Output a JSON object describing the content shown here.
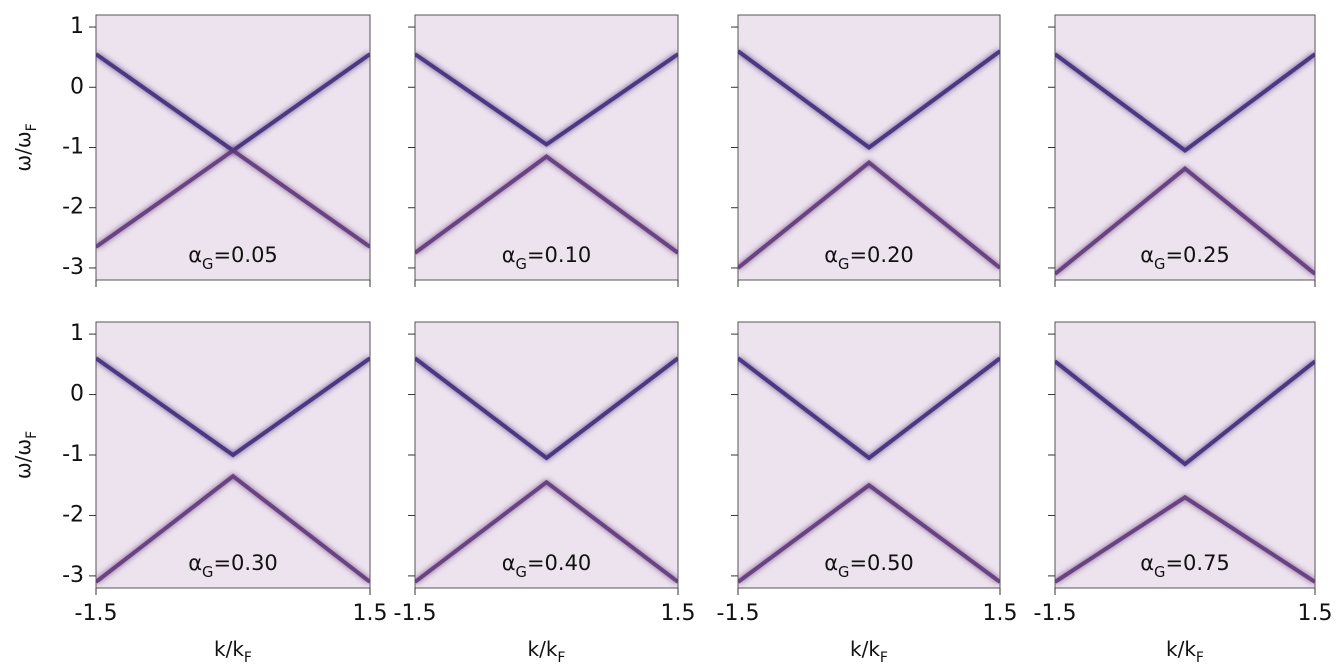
{
  "chart_data": [
    {
      "type": "line",
      "ylabel": {
        "text": "ω/ω",
        "sub": "F"
      },
      "annotation": {
        "symbol": "α",
        "sub": "G",
        "text": "=0.05"
      },
      "x": [
        -1.5,
        0,
        1.5
      ],
      "series": [
        {
          "color": "#3d2878",
          "values": [
            0.55,
            -1.05,
            0.55
          ]
        },
        {
          "color": "#5e3278",
          "values": [
            -2.65,
            -1.05,
            -2.65
          ]
        }
      ],
      "xlim": [
        -1.5,
        1.5
      ],
      "ylim": [
        -3.2,
        1.2
      ],
      "xticks": [
        -1.5,
        1.5
      ],
      "yticks": [
        1,
        0,
        -1,
        -2,
        -3
      ]
    },
    {
      "type": "line",
      "annotation": {
        "symbol": "α",
        "sub": "G",
        "text": "=0.10"
      },
      "x": [
        -1.5,
        0,
        1.5
      ],
      "series": [
        {
          "color": "#3d2878",
          "values": [
            0.55,
            -0.95,
            0.55
          ]
        },
        {
          "color": "#5e3278",
          "values": [
            -2.75,
            -1.15,
            -2.75
          ]
        }
      ],
      "xlim": [
        -1.5,
        1.5
      ],
      "ylim": [
        -3.2,
        1.2
      ],
      "xticks": [
        -1.5,
        1.5
      ],
      "yticks": [
        1,
        0,
        -1,
        -2,
        -3
      ]
    },
    {
      "type": "line",
      "annotation": {
        "symbol": "α",
        "sub": "G",
        "text": "=0.20"
      },
      "x": [
        -1.5,
        0,
        1.5
      ],
      "series": [
        {
          "color": "#3d2878",
          "values": [
            0.6,
            -1.0,
            0.6
          ]
        },
        {
          "color": "#5e3278",
          "values": [
            -3.0,
            -1.25,
            -3.0
          ]
        }
      ],
      "xlim": [
        -1.5,
        1.5
      ],
      "ylim": [
        -3.2,
        1.2
      ],
      "xticks": [
        -1.5,
        1.5
      ],
      "yticks": [
        1,
        0,
        -1,
        -2,
        -3
      ]
    },
    {
      "type": "line",
      "annotation": {
        "symbol": "α",
        "sub": "G",
        "text": "=0.25"
      },
      "x": [
        -1.5,
        0,
        1.5
      ],
      "series": [
        {
          "color": "#3d2878",
          "values": [
            0.55,
            -1.05,
            0.55
          ]
        },
        {
          "color": "#5e3278",
          "values": [
            -3.1,
            -1.35,
            -3.1
          ]
        }
      ],
      "xlim": [
        -1.5,
        1.5
      ],
      "ylim": [
        -3.2,
        1.2
      ],
      "xticks": [
        -1.5,
        1.5
      ],
      "yticks": [
        1,
        0,
        -1,
        -2,
        -3
      ]
    },
    {
      "type": "line",
      "ylabel": {
        "text": "ω/ω",
        "sub": "F"
      },
      "xlabel": {
        "text": "k/k",
        "sub": "F"
      },
      "annotation": {
        "symbol": "α",
        "sub": "G",
        "text": "=0.30"
      },
      "x": [
        -1.5,
        0,
        1.5
      ],
      "series": [
        {
          "color": "#3d2878",
          "values": [
            0.6,
            -1.0,
            0.6
          ]
        },
        {
          "color": "#5e3278",
          "values": [
            -3.1,
            -1.35,
            -3.1
          ]
        }
      ],
      "xlim": [
        -1.5,
        1.5
      ],
      "ylim": [
        -3.2,
        1.2
      ],
      "xticks": [
        -1.5,
        1.5
      ],
      "yticks": [
        1,
        0,
        -1,
        -2,
        -3
      ]
    },
    {
      "type": "line",
      "xlabel": {
        "text": "k/k",
        "sub": "F"
      },
      "annotation": {
        "symbol": "α",
        "sub": "G",
        "text": "=0.40"
      },
      "x": [
        -1.5,
        0,
        1.5
      ],
      "series": [
        {
          "color": "#3d2878",
          "values": [
            0.6,
            -1.05,
            0.6
          ]
        },
        {
          "color": "#5e3278",
          "values": [
            -3.1,
            -1.45,
            -3.1
          ]
        }
      ],
      "xlim": [
        -1.5,
        1.5
      ],
      "ylim": [
        -3.2,
        1.2
      ],
      "xticks": [
        -1.5,
        1.5
      ],
      "yticks": [
        1,
        0,
        -1,
        -2,
        -3
      ]
    },
    {
      "type": "line",
      "xlabel": {
        "text": "k/k",
        "sub": "F"
      },
      "annotation": {
        "symbol": "α",
        "sub": "G",
        "text": "=0.50"
      },
      "x": [
        -1.5,
        0,
        1.5
      ],
      "series": [
        {
          "color": "#3d2878",
          "values": [
            0.6,
            -1.05,
            0.6
          ]
        },
        {
          "color": "#5e3278",
          "values": [
            -3.1,
            -1.5,
            -3.1
          ]
        }
      ],
      "xlim": [
        -1.5,
        1.5
      ],
      "ylim": [
        -3.2,
        1.2
      ],
      "xticks": [
        -1.5,
        1.5
      ],
      "yticks": [
        1,
        0,
        -1,
        -2,
        -3
      ]
    },
    {
      "type": "line",
      "xlabel": {
        "text": "k/k",
        "sub": "F"
      },
      "annotation": {
        "symbol": "α",
        "sub": "G",
        "text": "=0.75"
      },
      "x": [
        -1.5,
        0,
        1.5
      ],
      "series": [
        {
          "color": "#3d2878",
          "values": [
            0.55,
            -1.15,
            0.55
          ]
        },
        {
          "color": "#5e3278",
          "values": [
            -3.1,
            -1.7,
            -3.1
          ]
        }
      ],
      "xlim": [
        -1.5,
        1.5
      ],
      "ylim": [
        -3.2,
        1.2
      ],
      "xticks": [
        -1.5,
        1.5
      ],
      "yticks": [
        1,
        0,
        -1,
        -2,
        -3
      ]
    }
  ]
}
